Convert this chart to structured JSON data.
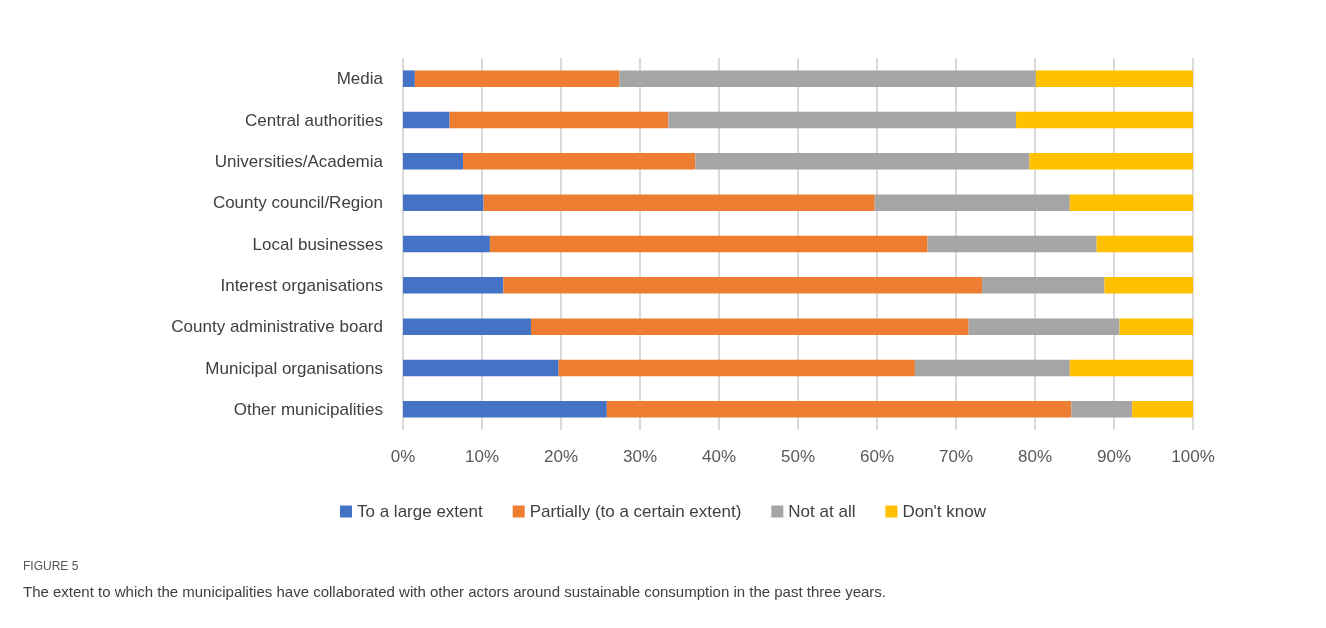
{
  "chart_data": {
    "type": "bar",
    "orientation": "horizontal",
    "stacked": true,
    "categories": [
      "Media",
      "Central authorities",
      "Universities/Academia",
      "County council/Region",
      "Local businesses",
      "Interest organisations",
      "County administrative board",
      "Municipal organisations",
      "Other municipalities"
    ],
    "series": [
      {
        "name": "To a large extent",
        "color": "#4472c4",
        "values": [
          1.5,
          5.9,
          7.6,
          10.2,
          11.0,
          12.7,
          16.2,
          19.7,
          25.8
        ]
      },
      {
        "name": "Partially (to a certain extent)",
        "color": "#ed7d31",
        "values": [
          25.9,
          27.7,
          29.4,
          49.5,
          55.4,
          60.6,
          55.4,
          45.1,
          58.8
        ]
      },
      {
        "name": "Not at all",
        "color": "#a5a5a5",
        "values": [
          52.7,
          44.0,
          42.3,
          24.7,
          21.4,
          15.5,
          19.1,
          19.6,
          7.7
        ]
      },
      {
        "name": "Don't know",
        "color": "#ffc000",
        "values": [
          19.9,
          22.4,
          20.7,
          15.6,
          12.2,
          11.2,
          9.3,
          15.6,
          7.7
        ]
      }
    ],
    "xlim": [
      0,
      100
    ],
    "xticks": [
      {
        "value": 0,
        "label": "0%"
      },
      {
        "value": 10,
        "label": "10%"
      },
      {
        "value": 20,
        "label": "20%"
      },
      {
        "value": 30,
        "label": "30%"
      },
      {
        "value": 40,
        "label": "40%"
      },
      {
        "value": 50,
        "label": "50%"
      },
      {
        "value": 60,
        "label": "60%"
      },
      {
        "value": 70,
        "label": "70%"
      },
      {
        "value": 80,
        "label": "80%"
      },
      {
        "value": 90,
        "label": "90%"
      },
      {
        "value": 100,
        "label": "100%"
      }
    ],
    "grid": "x",
    "legend": "bottom",
    "annotations": [
      "FIGURE 5",
      "The extent to which the municipalities have collaborated with other actors around sustainable consumption in the past three years."
    ]
  }
}
